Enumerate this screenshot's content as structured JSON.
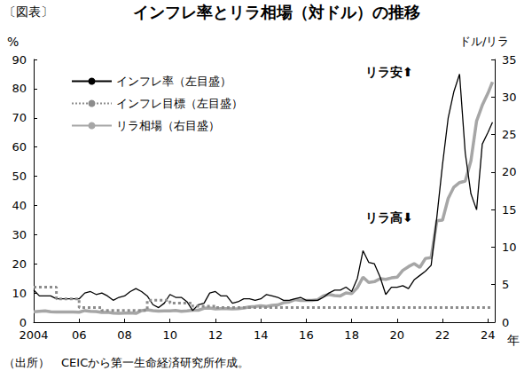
{
  "chart_data": {
    "type": "line",
    "figure_label": "〔図表〕",
    "title": "インフレ率とリラ相場（対ドル）の推移",
    "xlabel": "年",
    "ylabel": "%",
    "y2label": "ドル/リラ",
    "source": "（出所）　CEICから第一生命経済研究所作成。",
    "annotations": [
      "リラ安⬆",
      "リラ高⬇"
    ],
    "legend": "upper left",
    "grid": false,
    "xlim": [
      2004,
      2024.3
    ],
    "xticks": [
      2004,
      {
        "value": 2006,
        "label": "06"
      },
      {
        "value": 2008,
        "label": "08"
      },
      {
        "value": 2010,
        "label": "10"
      },
      {
        "value": 2012,
        "label": "12"
      },
      {
        "value": 2014,
        "label": "14"
      },
      {
        "value": 2016,
        "label": "16"
      },
      {
        "value": 2018,
        "label": "18"
      },
      {
        "value": 2020,
        "label": "20"
      },
      {
        "value": 2022,
        "label": "22"
      },
      {
        "value": 2024,
        "label": "24"
      }
    ],
    "ylim": [
      0,
      90
    ],
    "yticks": [
      0,
      10,
      20,
      30,
      40,
      50,
      60,
      70,
      80,
      90
    ],
    "y2lim": [
      0,
      35
    ],
    "y2ticks": [
      0,
      5,
      10,
      15,
      20,
      25,
      30,
      35
    ],
    "x": [
      2004,
      2004.25,
      2004.5,
      2004.75,
      2005,
      2005.25,
      2005.5,
      2005.75,
      2006,
      2006.25,
      2006.5,
      2006.75,
      2007,
      2007.25,
      2007.5,
      2007.75,
      2008,
      2008.25,
      2008.5,
      2008.75,
      2009,
      2009.25,
      2009.5,
      2009.75,
      2010,
      2010.25,
      2010.5,
      2010.75,
      2011,
      2011.25,
      2011.5,
      2011.75,
      2012,
      2012.25,
      2012.5,
      2012.75,
      2013,
      2013.25,
      2013.5,
      2013.75,
      2014,
      2014.25,
      2014.5,
      2014.75,
      2015,
      2015.25,
      2015.5,
      2015.75,
      2016,
      2016.25,
      2016.5,
      2016.75,
      2017,
      2017.25,
      2017.5,
      2017.75,
      2018,
      2018.25,
      2018.5,
      2018.75,
      2019,
      2019.25,
      2019.5,
      2019.75,
      2020,
      2020.25,
      2020.5,
      2020.75,
      2021,
      2021.25,
      2021.5,
      2021.75,
      2022,
      2022.25,
      2022.5,
      2022.75,
      2023,
      2023.25,
      2023.5,
      2023.75,
      2024,
      2024.2
    ],
    "series": [
      {
        "name": "インフレ率（左目盛）",
        "color": "#000000",
        "line_style": "solid",
        "axis": "y",
        "values": [
          11,
          9,
          9,
          9,
          8,
          8,
          8,
          8,
          8,
          10,
          10.5,
          9.5,
          10,
          9,
          7.5,
          8.5,
          9,
          10.5,
          11.5,
          10.5,
          9,
          6,
          5,
          6.5,
          9.5,
          8.5,
          8.5,
          7,
          4,
          6,
          6.5,
          10,
          10.5,
          9,
          9,
          6.5,
          7,
          8,
          8,
          7.5,
          8,
          9.5,
          9,
          8.5,
          7.5,
          7.5,
          8,
          8.5,
          7.5,
          7.5,
          7.5,
          8.5,
          10,
          11,
          11,
          12,
          10.5,
          15,
          24.5,
          20.5,
          20,
          15.5,
          9.5,
          12,
          12,
          12.5,
          11.5,
          14.5,
          16,
          17.5,
          19.5,
          36,
          54,
          70,
          79,
          85,
          58,
          44,
          38.5,
          61,
          65,
          68.5
        ]
      },
      {
        "name": "インフレ目標（左目盛）",
        "color": "#8c8c8c",
        "line_style": "dotted",
        "axis": "y",
        "x": [
          2004,
          2005,
          2005,
          2006,
          2006,
          2007,
          2007,
          2009,
          2009,
          2010,
          2010,
          2011,
          2011,
          2012,
          2012,
          2024.2
        ],
        "values": [
          12,
          12,
          8,
          8,
          5,
          5,
          4,
          4,
          7.5,
          7.5,
          6.5,
          6.5,
          5.5,
          5.5,
          5,
          5
        ]
      },
      {
        "name": "リラ相場（右目盛）",
        "color": "#a6a6a6",
        "line_style": "solid",
        "axis": "y2",
        "values": [
          1.4,
          1.45,
          1.5,
          1.4,
          1.35,
          1.35,
          1.35,
          1.35,
          1.33,
          1.55,
          1.45,
          1.42,
          1.3,
          1.32,
          1.2,
          1.17,
          1.2,
          1.25,
          1.17,
          1.55,
          1.65,
          1.55,
          1.48,
          1.5,
          1.5,
          1.57,
          1.45,
          1.52,
          1.6,
          1.6,
          1.85,
          1.9,
          1.78,
          1.8,
          1.8,
          1.78,
          1.8,
          1.9,
          2.05,
          2.1,
          2.2,
          2.1,
          2.25,
          2.3,
          2.6,
          2.7,
          3.0,
          2.9,
          2.9,
          2.9,
          3.0,
          3.5,
          3.7,
          3.55,
          3.5,
          3.9,
          3.8,
          4.6,
          6.0,
          5.3,
          5.4,
          5.8,
          5.7,
          5.9,
          6.0,
          6.9,
          7.4,
          7.8,
          7.3,
          8.5,
          8.6,
          13.5,
          13.6,
          16.5,
          18.0,
          18.6,
          18.8,
          21.5,
          26.8,
          28.9,
          30.5,
          32
        ]
      }
    ]
  }
}
